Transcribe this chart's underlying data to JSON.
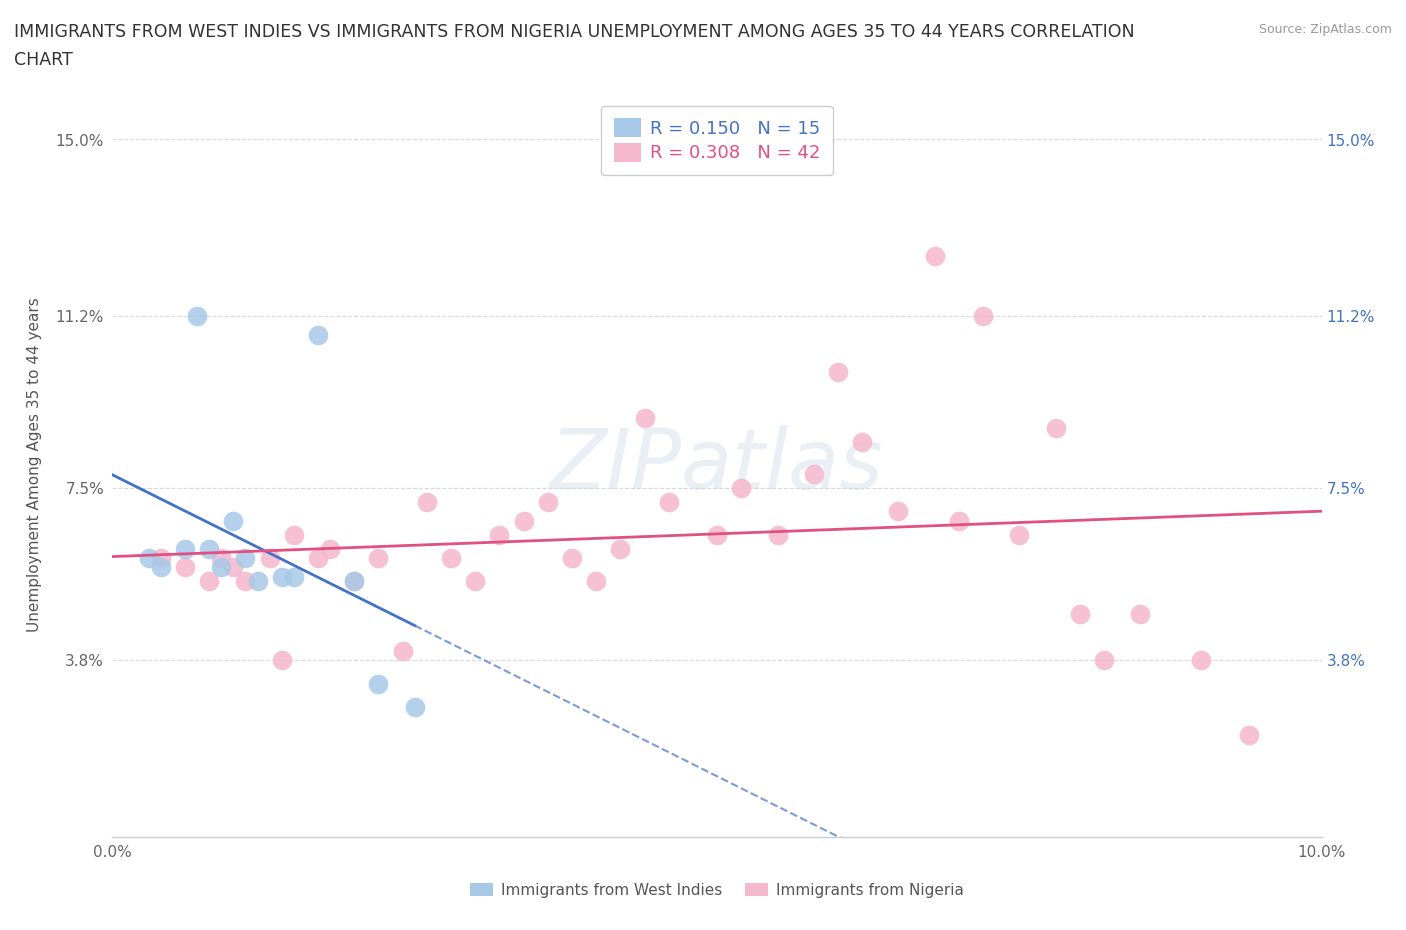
{
  "title_line1": "IMMIGRANTS FROM WEST INDIES VS IMMIGRANTS FROM NIGERIA UNEMPLOYMENT AMONG AGES 35 TO 44 YEARS CORRELATION",
  "title_line2": "CHART",
  "source": "Source: ZipAtlas.com",
  "ylabel": "Unemployment Among Ages 35 to 44 years",
  "xlim": [
    0.0,
    0.1
  ],
  "ylim": [
    0.0,
    0.16
  ],
  "xticks": [
    0.0,
    0.02,
    0.04,
    0.06,
    0.08,
    0.1
  ],
  "xticklabels": [
    "0.0%",
    "",
    "",
    "",
    "",
    "10.0%"
  ],
  "ytick_positions": [
    0.038,
    0.075,
    0.112,
    0.15
  ],
  "ytick_labels": [
    "3.8%",
    "7.5%",
    "11.2%",
    "15.0%"
  ],
  "R_west_indies": 0.15,
  "N_west_indies": 15,
  "R_nigeria": 0.308,
  "N_nigeria": 42,
  "color_west_indies": "#a8c8e8",
  "color_nigeria": "#f5b8cc",
  "line_color_west_indies": "#4472c4",
  "line_color_nigeria": "#e05080",
  "background_color": "#ffffff",
  "grid_color": "#d0d0d0",
  "title_fontsize": 12.5,
  "axis_fontsize": 11,
  "tick_fontsize": 11,
  "west_indies_x": [
    0.003,
    0.004,
    0.006,
    0.007,
    0.008,
    0.009,
    0.01,
    0.011,
    0.012,
    0.014,
    0.015,
    0.017,
    0.02,
    0.022,
    0.025
  ],
  "west_indies_y": [
    0.06,
    0.058,
    0.062,
    0.112,
    0.062,
    0.058,
    0.068,
    0.06,
    0.055,
    0.056,
    0.056,
    0.108,
    0.055,
    0.033,
    0.028
  ],
  "nigeria_x": [
    0.004,
    0.006,
    0.008,
    0.009,
    0.01,
    0.011,
    0.013,
    0.014,
    0.015,
    0.017,
    0.018,
    0.02,
    0.022,
    0.024,
    0.026,
    0.028,
    0.03,
    0.032,
    0.034,
    0.036,
    0.038,
    0.04,
    0.042,
    0.044,
    0.046,
    0.05,
    0.052,
    0.055,
    0.058,
    0.06,
    0.062,
    0.065,
    0.068,
    0.07,
    0.072,
    0.075,
    0.078,
    0.08,
    0.082,
    0.085,
    0.09,
    0.094
  ],
  "nigeria_y": [
    0.06,
    0.058,
    0.055,
    0.06,
    0.058,
    0.055,
    0.06,
    0.038,
    0.065,
    0.06,
    0.062,
    0.055,
    0.06,
    0.04,
    0.072,
    0.06,
    0.055,
    0.065,
    0.068,
    0.072,
    0.06,
    0.055,
    0.062,
    0.09,
    0.072,
    0.065,
    0.075,
    0.065,
    0.078,
    0.1,
    0.085,
    0.07,
    0.125,
    0.068,
    0.112,
    0.065,
    0.088,
    0.048,
    0.038,
    0.048,
    0.038,
    0.022
  ]
}
